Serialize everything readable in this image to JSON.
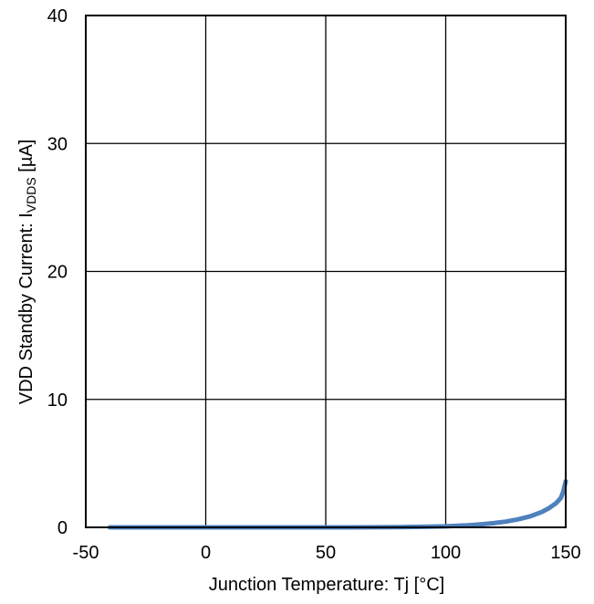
{
  "chart_data": {
    "type": "line",
    "xlabel": "Junction Temperature: Tj [°C]",
    "ylabel": {
      "prefix": "VDD Standby Current: I",
      "subscript": "VDDS",
      "suffix": " [µA]"
    },
    "xlim": [
      -50,
      150
    ],
    "ylim": [
      0,
      40
    ],
    "x_ticks": [
      -50,
      0,
      50,
      100,
      150
    ],
    "y_ticks": [
      0,
      10,
      20,
      30,
      40
    ],
    "grid": true,
    "legend": "none",
    "series": [
      {
        "color": "#4f81bd",
        "x": [
          -40,
          -20,
          0,
          20,
          40,
          60,
          80,
          90,
          100,
          105,
          110,
          115,
          120,
          125,
          130,
          135,
          140,
          143,
          146,
          148,
          149,
          150
        ],
        "y": [
          0.0,
          0.0,
          0.0,
          0.0,
          0.0,
          0.0,
          0.02,
          0.04,
          0.08,
          0.12,
          0.17,
          0.24,
          0.33,
          0.45,
          0.62,
          0.85,
          1.2,
          1.5,
          1.9,
          2.3,
          2.8,
          3.6
        ]
      }
    ]
  }
}
